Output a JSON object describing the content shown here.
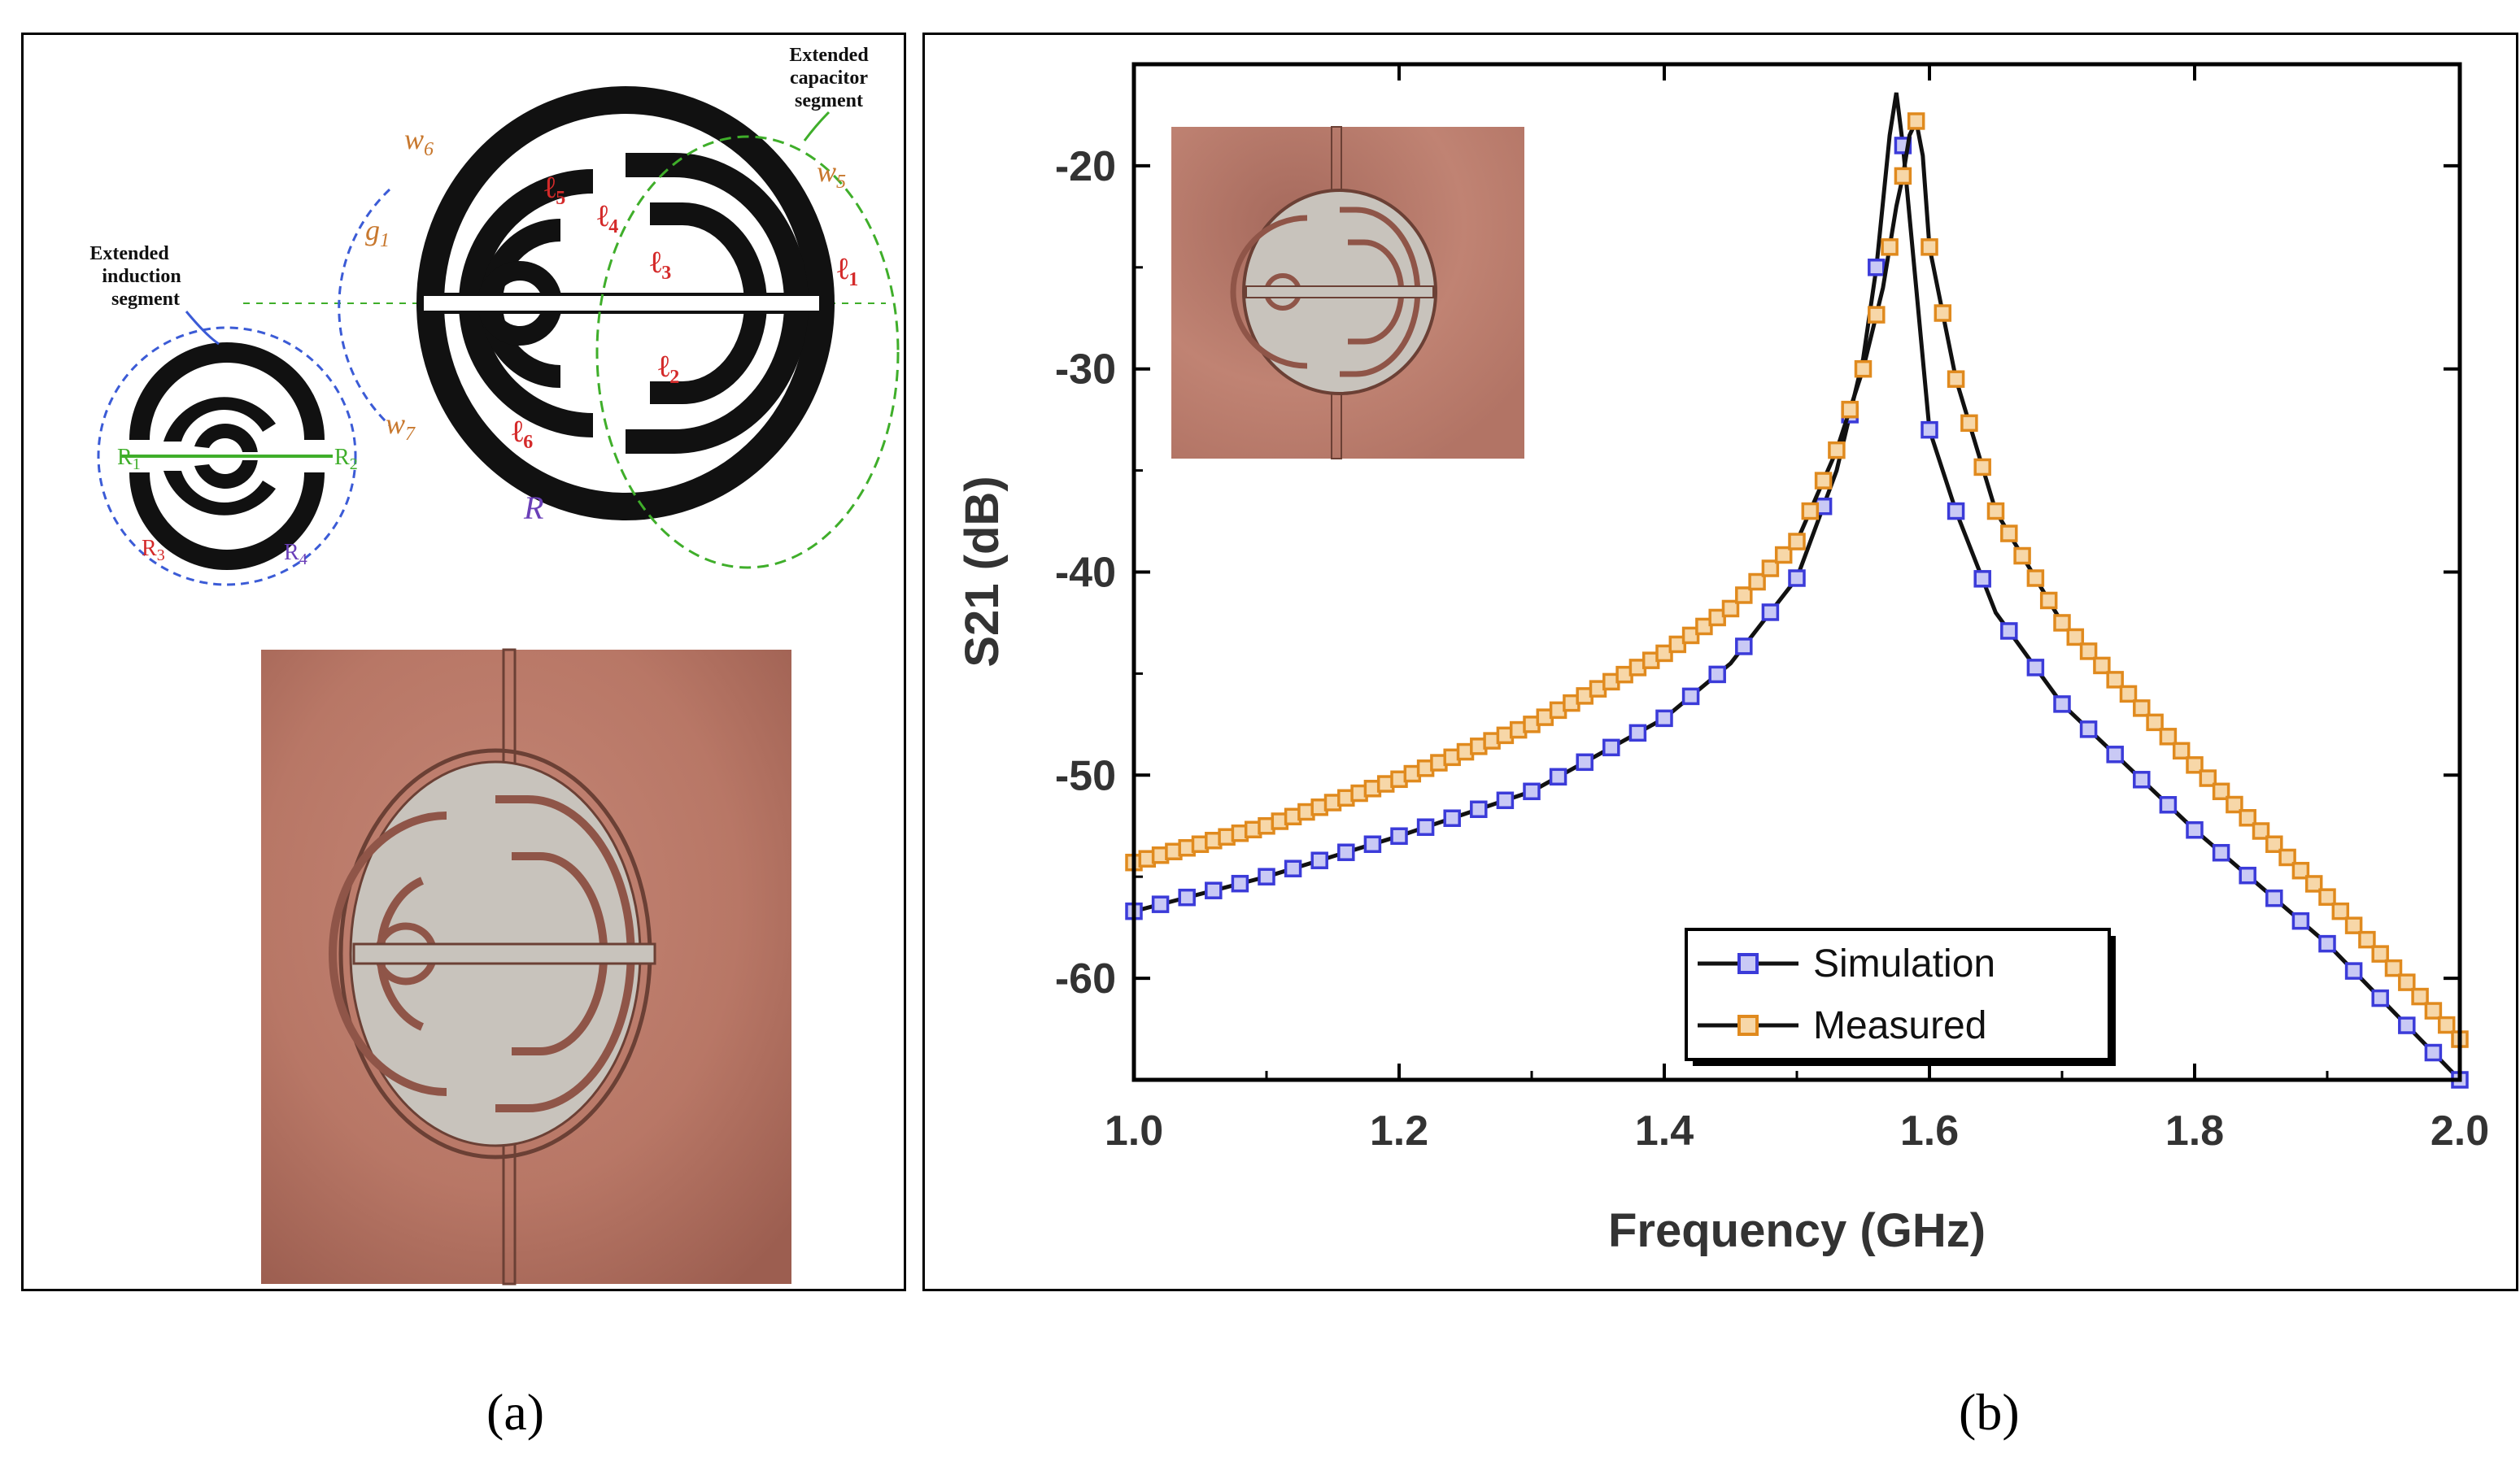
{
  "captions": {
    "a": "(a)",
    "b": "(b)"
  },
  "panel_a": {
    "labels": {
      "extended_induction": [
        "Extended",
        "induction",
        "segment"
      ],
      "extended_capacitor": [
        "Extended",
        "capacitor",
        "segment"
      ],
      "w6": "w",
      "w6_sub": "6",
      "w5": "w",
      "w5_sub": "5",
      "w7": "w",
      "w7_sub": "7",
      "g1": "g",
      "g1_sub": "1",
      "l1": "ℓ",
      "l1_sub": "1",
      "l2": "ℓ",
      "l2_sub": "2",
      "l3": "ℓ",
      "l3_sub": "3",
      "l4": "ℓ",
      "l4_sub": "4",
      "l5": "ℓ",
      "l5_sub": "5",
      "l6": "ℓ",
      "l6_sub": "6",
      "R": "R",
      "R1": "R",
      "R1_sub": "1",
      "R2": "R",
      "R2_sub": "2",
      "R3": "R",
      "R3_sub": "3",
      "R4": "R",
      "R4_sub": "4"
    },
    "colors": {
      "trace": "#111111",
      "copper": "#b9786a",
      "copper_dark": "#8f5548",
      "substrate": "#c9c4bd",
      "blue": "#3b5bd6",
      "green": "#3fae2a",
      "orange": "#c8782e",
      "red": "#d42a2a",
      "purple": "#6a3fb8"
    }
  },
  "chart_data": {
    "type": "line",
    "xlabel": "Frequency (GHz)",
    "ylabel": "S21 (dB)",
    "xlim": [
      1.0,
      2.0
    ],
    "ylim": [
      -65,
      -15
    ],
    "xticks": [
      "1.0",
      "1.2",
      "1.4",
      "1.6",
      "1.8",
      "2.0"
    ],
    "yticks": [
      "-20",
      "-30",
      "-40",
      "-50",
      "-60"
    ],
    "xtick_values": [
      1.0,
      1.2,
      1.4,
      1.6,
      1.8,
      2.0
    ],
    "ytick_values": [
      -20,
      -30,
      -40,
      -50,
      -60
    ],
    "legend_position": "bottom-right",
    "series": [
      {
        "name": "Simulation",
        "color": "#3b3bd9",
        "points": [
          [
            1.0,
            -56.7
          ],
          [
            1.1,
            -55.0
          ],
          [
            1.2,
            -53.0
          ],
          [
            1.3,
            -50.8
          ],
          [
            1.4,
            -47.2
          ],
          [
            1.45,
            -44.5
          ],
          [
            1.5,
            -40.3
          ],
          [
            1.53,
            -35.0
          ],
          [
            1.55,
            -29.5
          ],
          [
            1.56,
            -25.0
          ],
          [
            1.57,
            -18.5
          ],
          [
            1.575,
            -16.4
          ],
          [
            1.58,
            -19.0
          ],
          [
            1.585,
            -22.5
          ],
          [
            1.59,
            -26.0
          ],
          [
            1.6,
            -33.0
          ],
          [
            1.62,
            -37.0
          ],
          [
            1.65,
            -42.0
          ],
          [
            1.7,
            -46.5
          ],
          [
            1.8,
            -52.7
          ],
          [
            1.9,
            -58.3
          ],
          [
            2.0,
            -65.0
          ]
        ]
      },
      {
        "name": "Measured",
        "color": "#e08a1e",
        "points": [
          [
            1.0,
            -54.3
          ],
          [
            1.1,
            -52.5
          ],
          [
            1.2,
            -50.2
          ],
          [
            1.3,
            -47.5
          ],
          [
            1.4,
            -44.0
          ],
          [
            1.45,
            -41.8
          ],
          [
            1.5,
            -38.5
          ],
          [
            1.53,
            -34.0
          ],
          [
            1.55,
            -30.0
          ],
          [
            1.565,
            -26.0
          ],
          [
            1.575,
            -22.0
          ],
          [
            1.58,
            -20.5
          ],
          [
            1.585,
            -18.5
          ],
          [
            1.59,
            -17.8
          ],
          [
            1.595,
            -19.5
          ],
          [
            1.6,
            -24.0
          ],
          [
            1.62,
            -30.5
          ],
          [
            1.65,
            -37.0
          ],
          [
            1.7,
            -42.5
          ],
          [
            1.8,
            -49.5
          ],
          [
            1.9,
            -56.0
          ],
          [
            2.0,
            -63.0
          ]
        ]
      }
    ]
  }
}
